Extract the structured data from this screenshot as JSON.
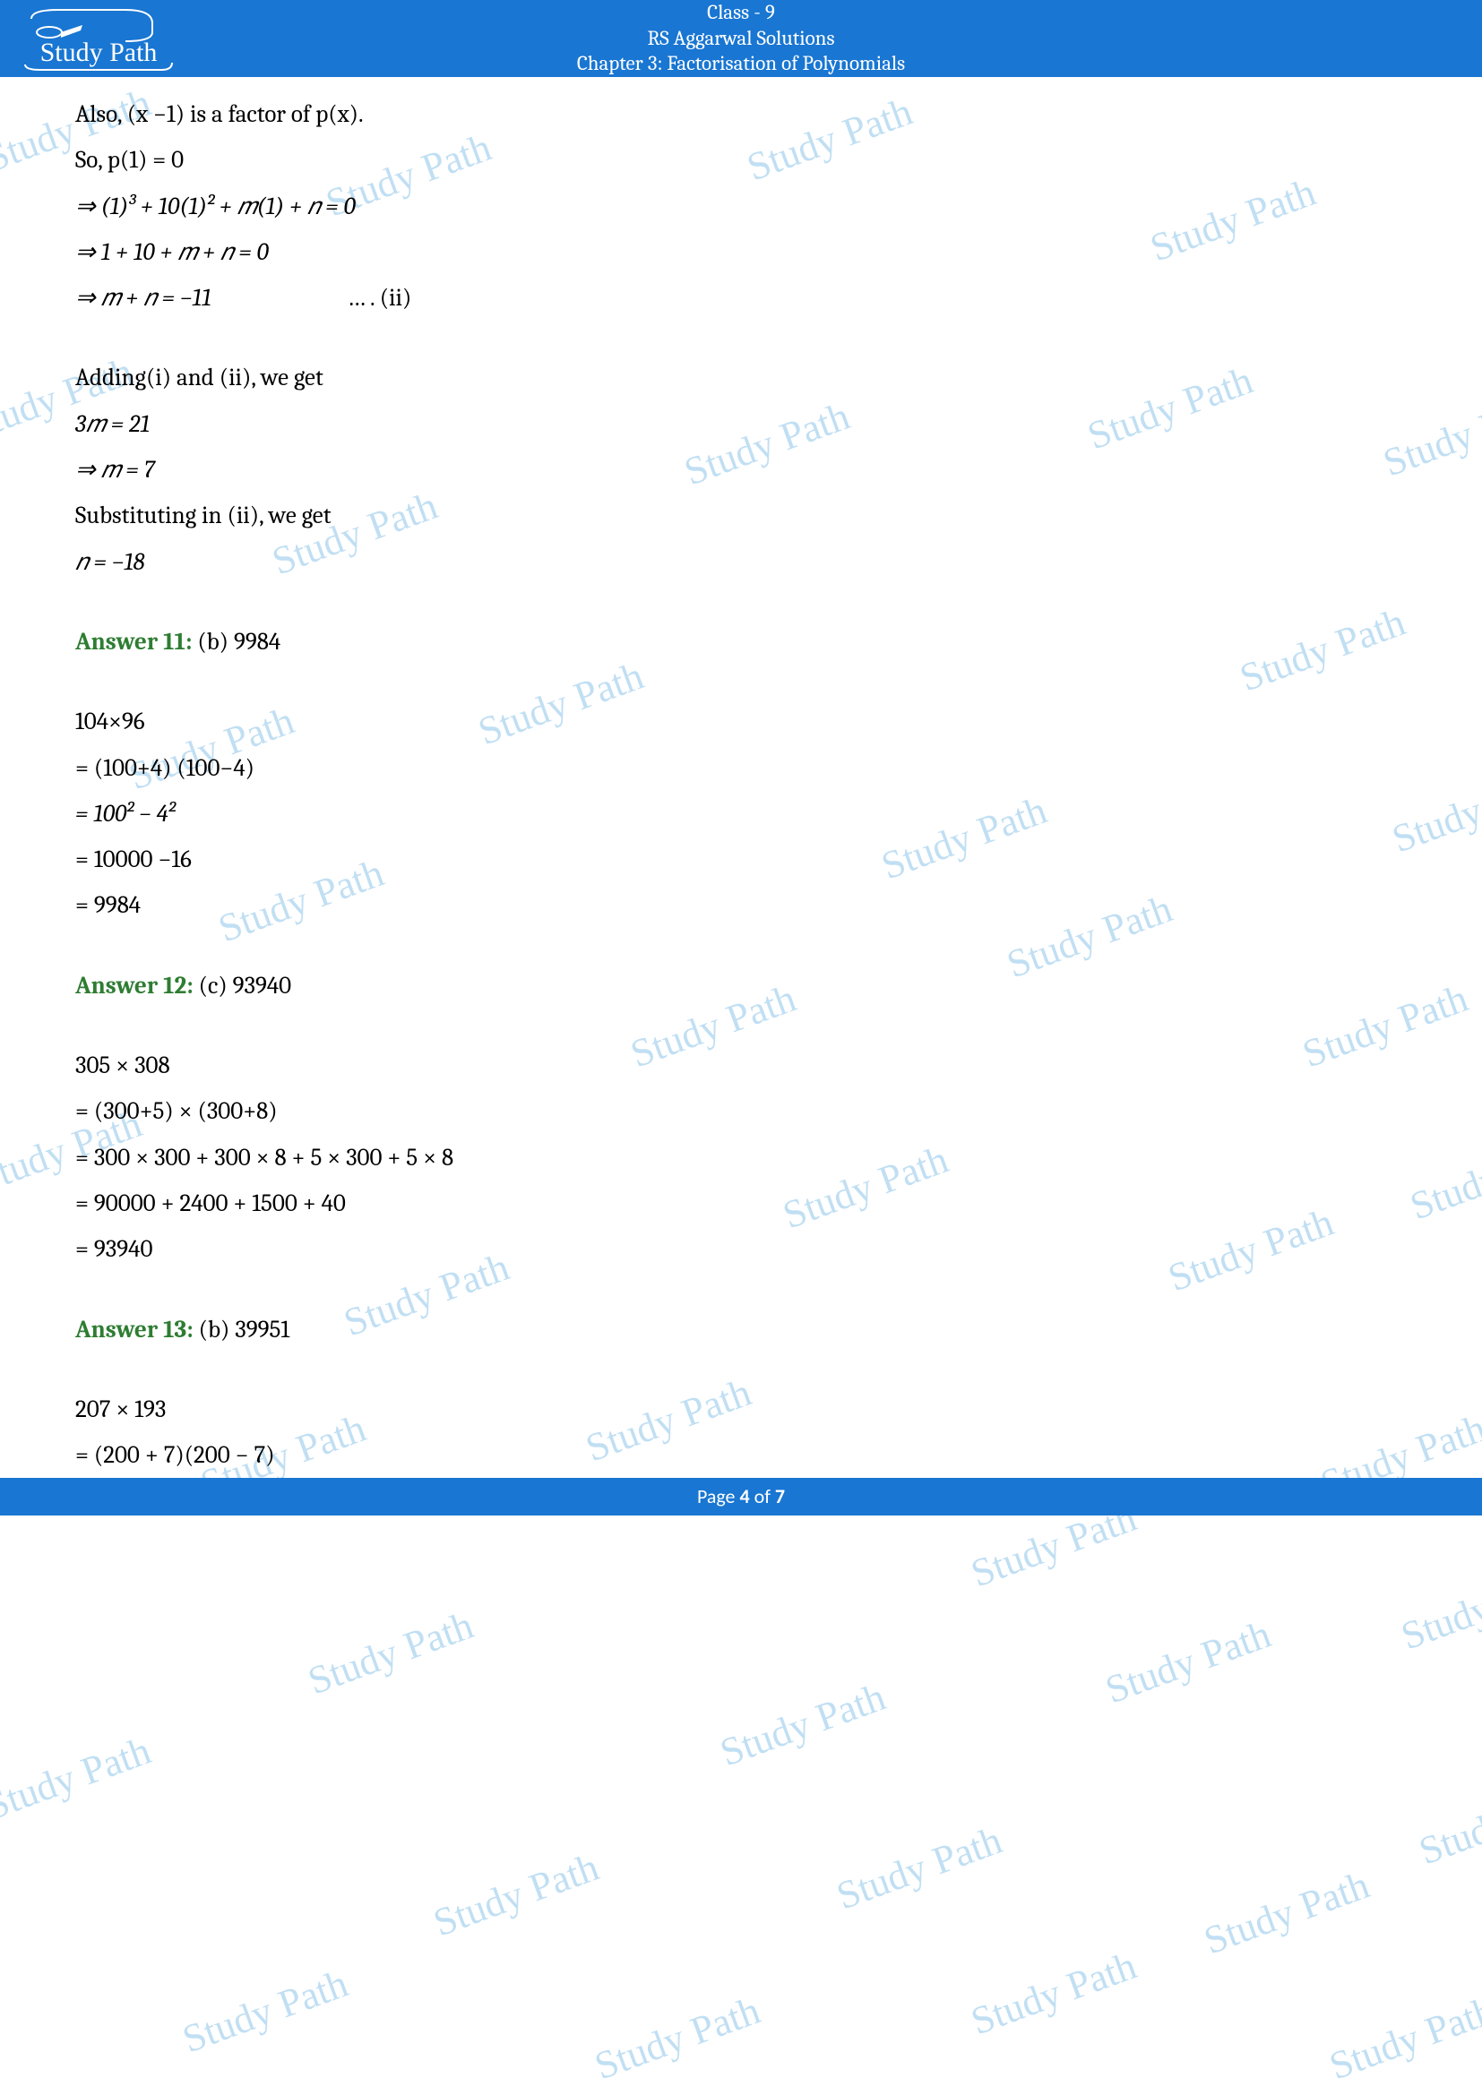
{
  "header": {
    "line1": "Class - 9",
    "line2": "RS Aggarwal Solutions",
    "line3": "Chapter 3: Factorisation of Polynomials",
    "logo_text": "Study Path"
  },
  "body": {
    "l1": "Also, (x −1) is a factor of p(x).",
    "l2": "So, p(1) = 0",
    "l3": "⇒ (1)³ + 10(1)² + 𝑚(1) + 𝑛 = 0",
    "l4": "⇒ 1 + 10 + 𝑚 + 𝑛 = 0",
    "l5a": "⇒ 𝑚 + 𝑛 = −11",
    "l5b": "… . (ii)",
    "l6": "Adding(i) and (ii), we get",
    "l7": "3𝑚 = 21",
    "l8": "⇒ 𝑚 = 7",
    "l9": "Substituting in (ii), we get",
    "l10": "𝑛 = −18",
    "ans11_label": "Answer 11:",
    "ans11_val": " (b) 9984",
    "a11_l1": "104×96",
    "a11_l2": "= (100+4) (100−4)",
    "a11_l3": "= 100² − 4²",
    "a11_l4": "= 10000 −16",
    "a11_l5": "= 9984",
    "ans12_label": "Answer 12:",
    "ans12_val": " (c) 93940",
    "a12_l1": "305 × 308",
    "a12_l2": "= (300+5) × (300+8)",
    "a12_l3": "= 300 × 300 + 300 × 8 + 5 × 300 + 5 × 8",
    "a12_l4": "= 90000 + 2400 + 1500 + 40",
    "a12_l5": " = 93940",
    "ans13_label": "Answer 13:",
    "ans13_val": " (b) 39951",
    "a13_l1": "207 × 193",
    "a13_l2": "= (200 + 7)(200 − 7)"
  },
  "footer": {
    "prefix": "Page ",
    "current": "4",
    "middle": " of ",
    "total": "7"
  },
  "watermark": {
    "text": "Study Path",
    "color": "#8fc6ea",
    "positions": [
      [
        -20,
        120
      ],
      [
        360,
        170
      ],
      [
        830,
        130
      ],
      [
        1280,
        220
      ],
      [
        -40,
        420
      ],
      [
        300,
        570
      ],
      [
        760,
        470
      ],
      [
        1210,
        430
      ],
      [
        1540,
        460
      ],
      [
        140,
        810
      ],
      [
        530,
        760
      ],
      [
        980,
        910
      ],
      [
        1380,
        700
      ],
      [
        1550,
        880
      ],
      [
        240,
        980
      ],
      [
        700,
        1120
      ],
      [
        1120,
        1020
      ],
      [
        1450,
        1120
      ],
      [
        -30,
        1260
      ],
      [
        380,
        1420
      ],
      [
        870,
        1300
      ],
      [
        1300,
        1370
      ],
      [
        1570,
        1290
      ],
      [
        220,
        1600
      ],
      [
        650,
        1560
      ],
      [
        1080,
        1700
      ],
      [
        1470,
        1600
      ],
      [
        340,
        1820
      ],
      [
        800,
        1900
      ],
      [
        1230,
        1830
      ],
      [
        1560,
        1770
      ],
      [
        -20,
        1960
      ],
      [
        480,
        2090
      ],
      [
        930,
        2060
      ],
      [
        1340,
        2110
      ],
      [
        1580,
        2010
      ],
      [
        200,
        2220
      ],
      [
        660,
        2250
      ],
      [
        1080,
        2200
      ],
      [
        1480,
        2250
      ]
    ]
  },
  "colors": {
    "header_bg": "#1976d2",
    "answer_green": "#2e7d32",
    "text": "#000000"
  }
}
